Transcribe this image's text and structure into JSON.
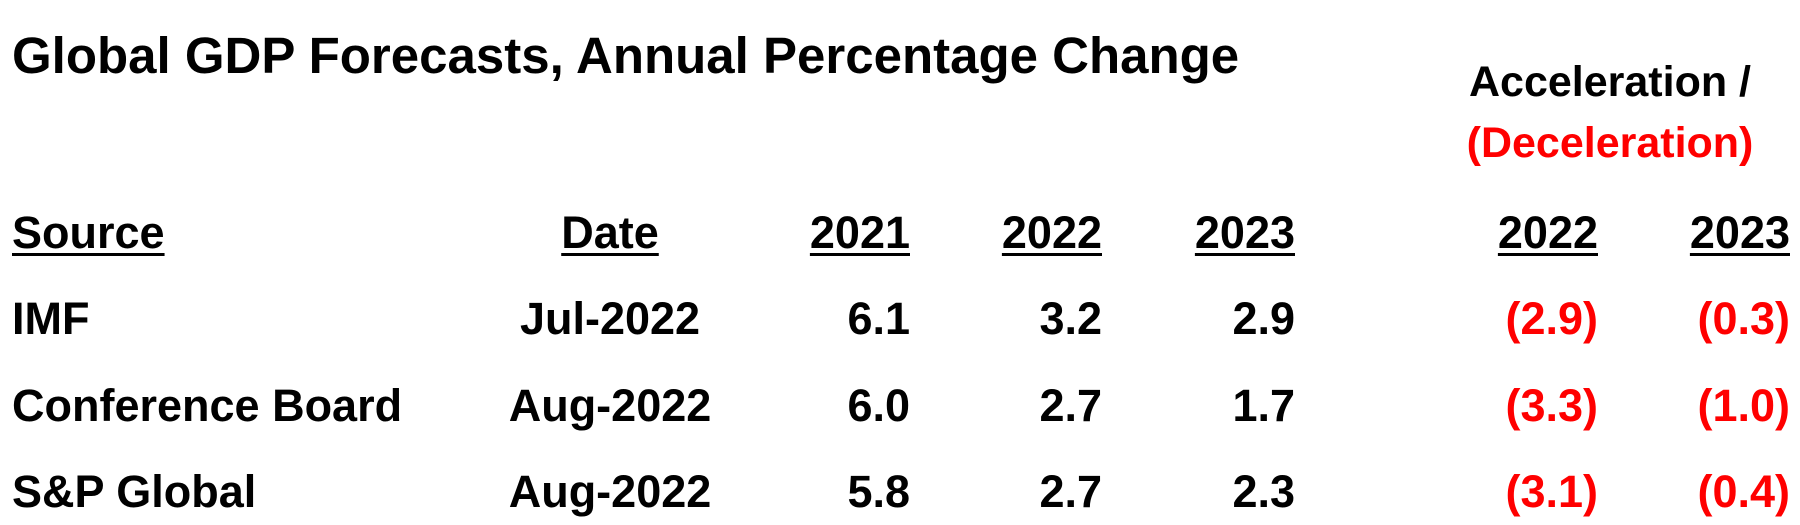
{
  "title": "Global GDP Forecasts, Annual Percentage Change",
  "acceleration_header": {
    "line1": "Acceleration /",
    "line2": "(Deceleration)"
  },
  "colors": {
    "text": "#000000",
    "negative": "#ff0000"
  },
  "columns": {
    "source": "Source",
    "date": "Date",
    "y2021": "2021",
    "y2022": "2022",
    "y2023": "2023",
    "accel_2022": "2022",
    "accel_2023": "2023"
  },
  "rows": [
    {
      "source": "IMF",
      "date": "Jul-2022",
      "y2021": "6.1",
      "y2022": "3.2",
      "y2023": "2.9",
      "accel_2022": "(2.9)",
      "accel_2023": "(0.3)"
    },
    {
      "source": "Conference Board",
      "date": "Aug-2022",
      "y2021": "6.0",
      "y2022": "2.7",
      "y2023": "1.7",
      "accel_2022": "(3.3)",
      "accel_2023": "(1.0)"
    },
    {
      "source": "S&P Global",
      "date": "Aug-2022",
      "y2021": "5.8",
      "y2022": "2.7",
      "y2023": "2.3",
      "accel_2022": "(3.1)",
      "accel_2023": "(0.4)"
    }
  ]
}
